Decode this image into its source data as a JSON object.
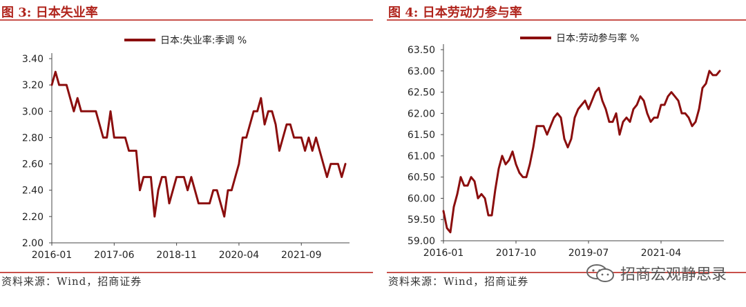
{
  "left": {
    "fig_label": "图 3:",
    "fig_title": "日本失业率",
    "source": "资料来源：Wind，招商证券"
  },
  "right": {
    "fig_label": "图 4:",
    "fig_title": "日本劳动力参与率",
    "source": "资料来源：Wind，招商证券"
  },
  "watermark": {
    "text": "招商宏观静思录",
    "icon": "wechat-icon"
  },
  "colors": {
    "series": "#8b0e0e",
    "title": "#b0241c",
    "rule": "#c8504a"
  },
  "chart_data": [
    {
      "type": "line",
      "title": "",
      "legend_position": "top-center",
      "grid": false,
      "xlabel": "",
      "ylabel": "",
      "ylim": [
        2.0,
        3.4
      ],
      "yticks": [
        "3.40",
        "3.20",
        "3.00",
        "2.80",
        "2.60",
        "2.40",
        "2.20",
        "2.00"
      ],
      "ytick_values": [
        3.4,
        3.2,
        3.0,
        2.8,
        2.6,
        2.4,
        2.2,
        2.0
      ],
      "xtick_labels": [
        "2016-01",
        "2017-06",
        "2018-11",
        "2020-04",
        "2021-09"
      ],
      "series": [
        {
          "name": "日本:失业率:季调 %",
          "start": "2016-01",
          "values": [
            3.2,
            3.3,
            3.2,
            3.2,
            3.2,
            3.1,
            3.0,
            3.1,
            3.0,
            3.0,
            3.0,
            3.0,
            3.0,
            2.9,
            2.8,
            2.8,
            3.0,
            2.8,
            2.8,
            2.8,
            2.8,
            2.7,
            2.7,
            2.7,
            2.4,
            2.5,
            2.5,
            2.5,
            2.2,
            2.4,
            2.5,
            2.5,
            2.3,
            2.4,
            2.5,
            2.5,
            2.5,
            2.4,
            2.5,
            2.4,
            2.3,
            2.3,
            2.3,
            2.3,
            2.4,
            2.4,
            2.3,
            2.2,
            2.4,
            2.4,
            2.5,
            2.6,
            2.8,
            2.8,
            2.9,
            3.0,
            3.0,
            3.1,
            2.9,
            3.0,
            3.0,
            2.9,
            2.7,
            2.8,
            2.9,
            2.9,
            2.8,
            2.8,
            2.8,
            2.7,
            2.8,
            2.7,
            2.8,
            2.7,
            2.6,
            2.5,
            2.6,
            2.6,
            2.6,
            2.5,
            2.6
          ]
        }
      ]
    },
    {
      "type": "line",
      "title": "",
      "legend_position": "top-center",
      "grid": false,
      "xlabel": "",
      "ylabel": "",
      "ylim": [
        59.0,
        63.5
      ],
      "yticks": [
        "63.50",
        "63.00",
        "62.50",
        "62.00",
        "61.50",
        "61.00",
        "60.50",
        "60.00",
        "59.50",
        "59.00"
      ],
      "ytick_values": [
        63.5,
        63.0,
        62.5,
        62.0,
        61.5,
        61.0,
        60.5,
        60.0,
        59.5,
        59.0
      ],
      "xtick_labels": [
        "2016-01",
        "2017-10",
        "2019-07",
        "2021-04"
      ],
      "series": [
        {
          "name": "日本:劳动参与率 %",
          "start": "2016-01",
          "values": [
            59.7,
            59.3,
            59.2,
            59.8,
            60.1,
            60.5,
            60.3,
            60.3,
            60.5,
            60.4,
            60.0,
            60.1,
            60.0,
            59.6,
            59.6,
            60.2,
            60.7,
            61.0,
            60.8,
            60.9,
            61.1,
            60.8,
            60.6,
            60.5,
            60.5,
            60.8,
            61.2,
            61.7,
            61.7,
            61.7,
            61.5,
            61.7,
            61.9,
            62.0,
            61.9,
            61.4,
            61.2,
            61.4,
            61.9,
            62.1,
            62.2,
            62.3,
            62.1,
            62.3,
            62.5,
            62.6,
            62.3,
            62.1,
            61.8,
            61.8,
            62.0,
            61.5,
            61.8,
            61.9,
            61.8,
            62.1,
            62.2,
            62.4,
            62.3,
            62.0,
            61.8,
            61.9,
            61.9,
            62.2,
            62.2,
            62.4,
            62.5,
            62.4,
            62.3,
            62.0,
            62.0,
            61.9,
            61.7,
            61.8,
            62.1,
            62.6,
            62.7,
            63.0,
            62.9,
            62.9,
            63.0
          ]
        }
      ]
    }
  ]
}
